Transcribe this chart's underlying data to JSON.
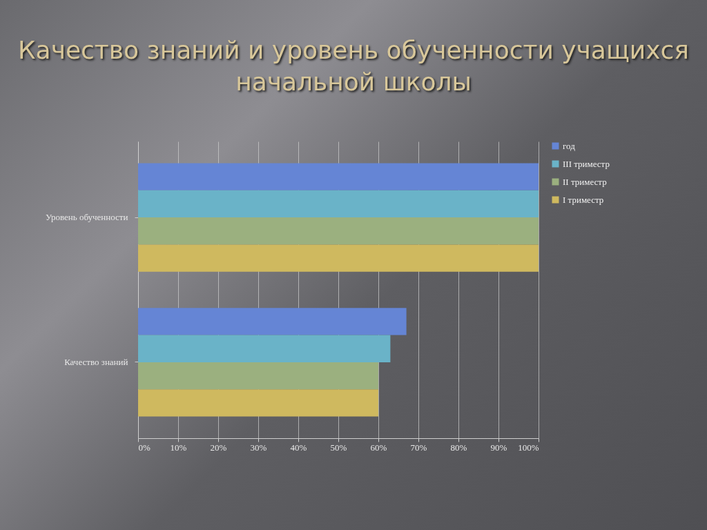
{
  "chart_data": {
    "type": "bar",
    "orientation": "horizontal",
    "title": "Качество знаний и уровень обученности учащихся начальной школы",
    "categories": [
      "Уровень обученности",
      "Качество знаний"
    ],
    "series": [
      {
        "name": "год",
        "color": "#6585d5",
        "values": [
          100,
          67
        ]
      },
      {
        "name": "III триместр",
        "color": "#6ab3c8",
        "values": [
          100,
          63
        ]
      },
      {
        "name": "II триместр",
        "color": "#9bb07f",
        "values": [
          100,
          60
        ]
      },
      {
        "name": "I триместр",
        "color": "#cfb95f",
        "values": [
          100,
          60
        ]
      }
    ],
    "xlim": [
      0,
      100
    ],
    "xticks": [
      {
        "value": 0,
        "label": "0%"
      },
      {
        "value": 10,
        "label": "10%"
      },
      {
        "value": 20,
        "label": "20%"
      },
      {
        "value": 30,
        "label": "30%"
      },
      {
        "value": 40,
        "label": "40%"
      },
      {
        "value": 50,
        "label": "50%"
      },
      {
        "value": 60,
        "label": "60%"
      },
      {
        "value": 70,
        "label": "70%"
      },
      {
        "value": 80,
        "label": "80%"
      },
      {
        "value": 90,
        "label": "90%"
      },
      {
        "value": 100,
        "label": "100%"
      }
    ],
    "grid": "x",
    "legend": "right"
  }
}
